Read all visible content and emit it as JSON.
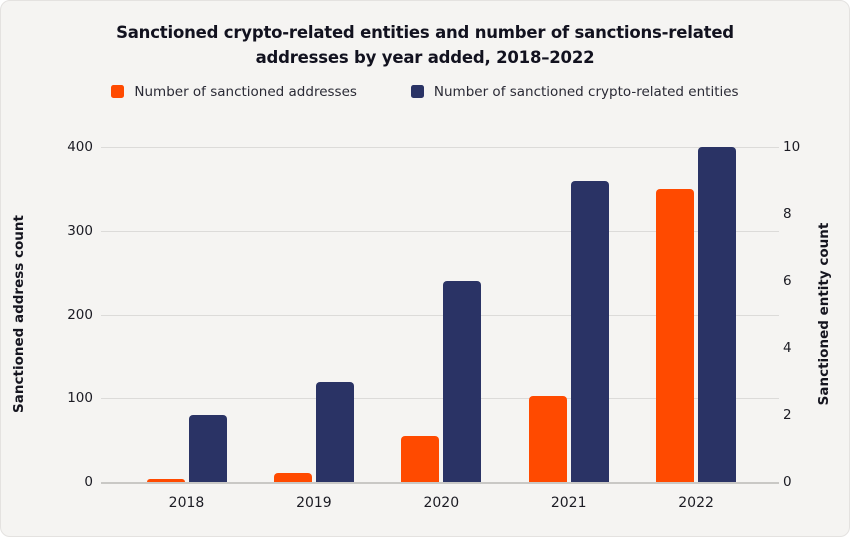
{
  "title": "Sanctioned crypto-related entities and number of sanctions-related addresses by year added, 2018–2022",
  "legend": [
    {
      "label": "Number of sanctioned addresses",
      "color": "#FF4A00"
    },
    {
      "label": "Number of sanctioned crypto-related entities",
      "color": "#2A3365"
    }
  ],
  "chart_data": {
    "type": "bar",
    "categories": [
      "2018",
      "2019",
      "2020",
      "2021",
      "2022"
    ],
    "series": [
      {
        "name": "Number of sanctioned addresses",
        "axis": "left",
        "color": "#FF4A00",
        "values": [
          3,
          11,
          55,
          103,
          350
        ]
      },
      {
        "name": "Number of sanctioned crypto-related entities",
        "axis": "right",
        "color": "#2A3365",
        "values": [
          2,
          3,
          6,
          9,
          10
        ]
      }
    ],
    "left_axis": {
      "label": "Sanctioned address count",
      "ticks": [
        0,
        100,
        200,
        300,
        400
      ],
      "min": 0,
      "max": 400
    },
    "right_axis": {
      "label": "Sanctioned entity count",
      "ticks": [
        0,
        2,
        4,
        6,
        8,
        10
      ],
      "min": 0,
      "max": 10
    },
    "title": "Sanctioned crypto-related entities and number of sanctions-related addresses by year added, 2018–2022",
    "grid": true,
    "legend_position": "top"
  }
}
